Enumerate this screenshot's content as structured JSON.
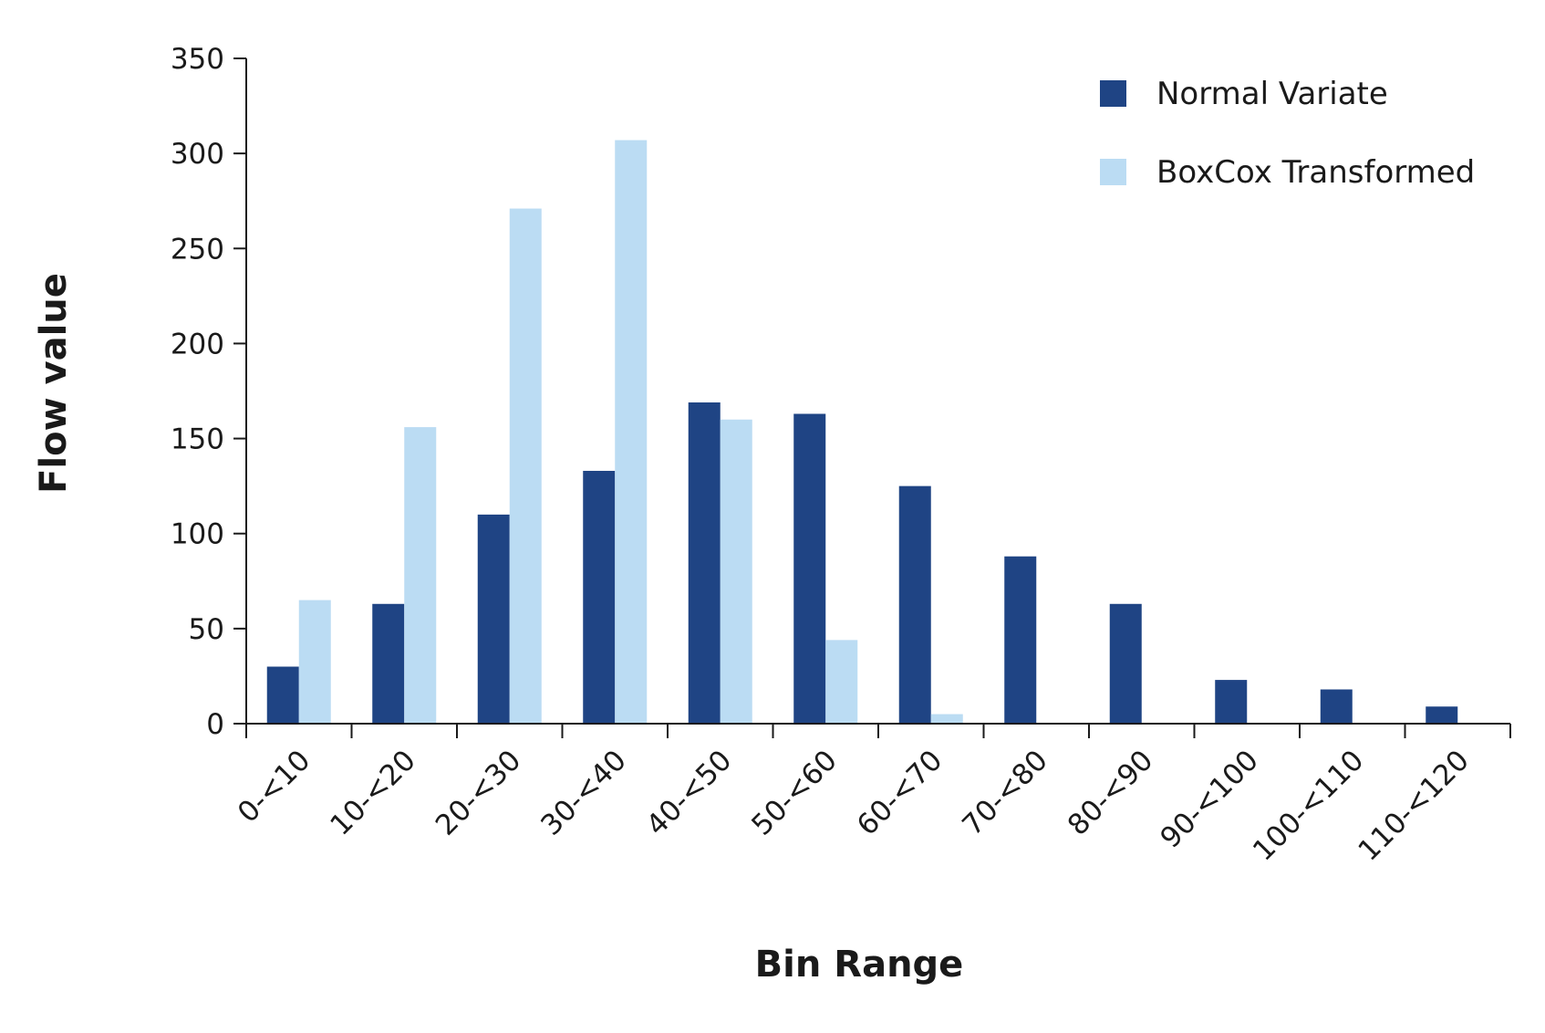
{
  "chart_data": {
    "type": "bar",
    "xlabel": "Bin Range",
    "ylabel": "Flow value",
    "ylim": [
      0,
      350
    ],
    "yticks": [
      0,
      50,
      100,
      150,
      200,
      250,
      300,
      350
    ],
    "categories": [
      "0-<10",
      "10-<20",
      "20-<30",
      "30-<40",
      "40-<50",
      "50-<60",
      "60-<70",
      "70-<80",
      "80-<90",
      "90-<100",
      "100-<110",
      "110-<120"
    ],
    "series": [
      {
        "name": "Normal Variate",
        "color": "#1f4484",
        "values": [
          30,
          63,
          110,
          133,
          169,
          163,
          125,
          88,
          63,
          23,
          18,
          9
        ]
      },
      {
        "name": "BoxCox Transformed",
        "color": "#bbdcf3",
        "values": [
          65,
          156,
          271,
          307,
          160,
          44,
          5,
          0,
          0,
          0,
          0,
          0
        ]
      }
    ],
    "grid": false,
    "legend_position": "top-right"
  }
}
